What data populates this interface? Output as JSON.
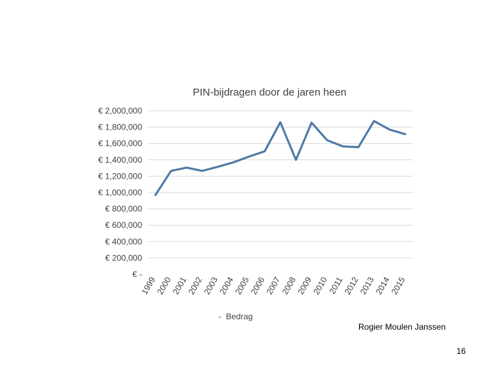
{
  "slide": {
    "author": "Rogier Moulen Janssen",
    "page_number": "16"
  },
  "chart_data": {
    "type": "line",
    "title": "PIN-bijdragen door de jaren heen",
    "xlabel": "",
    "ylabel": "",
    "categories": [
      "1999",
      "2000",
      "2001",
      "2002",
      "2003",
      "2004",
      "2005",
      "2006",
      "2007",
      "2008",
      "2009",
      "2010",
      "2011",
      "2012",
      "2013",
      "2014",
      "2015"
    ],
    "series": [
      {
        "name": "Bedrag",
        "color": "#4e79a7",
        "values": [
          970000,
          1265000,
          1305000,
          1265000,
          1315000,
          1370000,
          1440000,
          1505000,
          1860000,
          1400000,
          1855000,
          1640000,
          1565000,
          1555000,
          1875000,
          1770000,
          1715000
        ]
      }
    ],
    "ylim": [
      0,
      2000000
    ],
    "ytick_values": [
      0,
      200000,
      400000,
      600000,
      800000,
      1000000,
      1200000,
      1400000,
      1600000,
      1800000,
      2000000
    ],
    "ytick_labels": [
      "€ -",
      "€ 200,000",
      "€ 400,000",
      "€ 600,000",
      "€ 800,000",
      "€ 1,000,000",
      "€ 1,200,000",
      "€ 1,400,000",
      "€ 1,600,000",
      "€ 1,800,000",
      "€ 2,000,000"
    ],
    "legend_position": "bottom",
    "legend_marker": "-",
    "grid": true
  }
}
